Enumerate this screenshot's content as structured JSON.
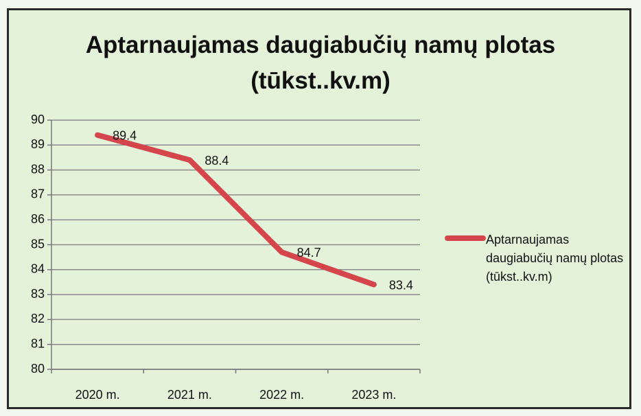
{
  "chart_data": {
    "type": "line",
    "title": "Aptarnaujamas daugiabučių namų plotas (tūkst..kv.m)",
    "categories": [
      "2020 m.",
      "2021 m.",
      "2022 m.",
      "2023 m."
    ],
    "series": [
      {
        "name": "Aptarnaujamas daugiabučių namų plotas (tūkst..kv.m)",
        "color": "#d5454c",
        "values": [
          89.4,
          88.4,
          84.7,
          83.4
        ]
      }
    ],
    "ylim": [
      80,
      90
    ],
    "yticks": [
      80,
      81,
      82,
      83,
      84,
      85,
      86,
      87,
      88,
      89,
      90
    ],
    "grid": true,
    "legend": "right"
  }
}
